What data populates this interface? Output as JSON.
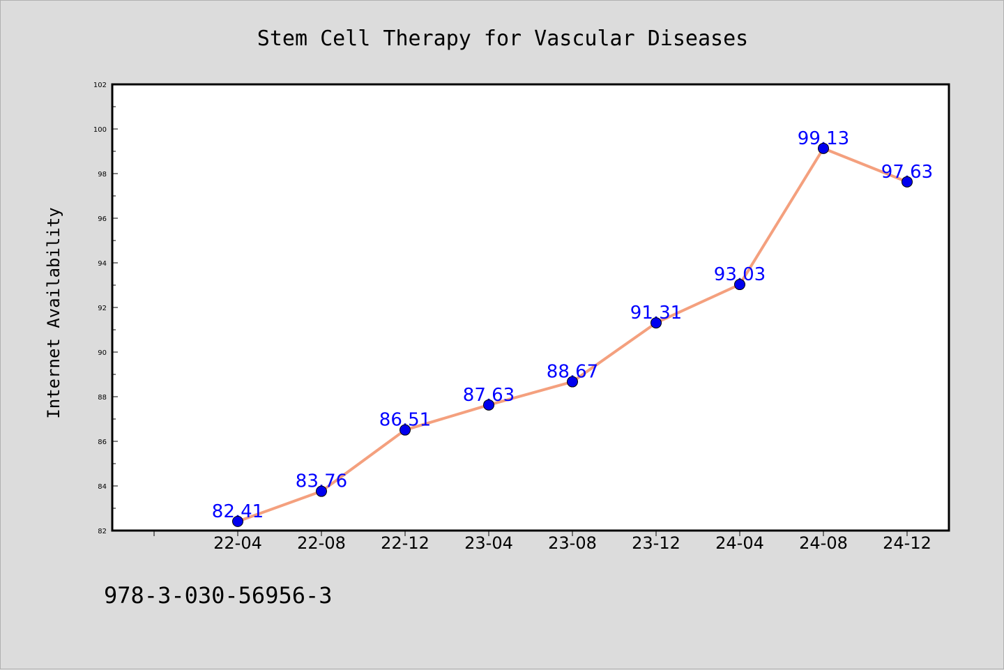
{
  "chart_data": {
    "type": "line",
    "title": "Stem Cell Therapy for Vascular Diseases",
    "xlabel": "",
    "ylabel": "Internet Availability",
    "categories": [
      "22-04",
      "22-08",
      "22-12",
      "23-04",
      "23-08",
      "23-12",
      "24-04",
      "24-08",
      "24-12"
    ],
    "series": [
      {
        "values": [
          82.41,
          83.76,
          86.51,
          87.63,
          88.67,
          91.31,
          93.03,
          99.13,
          97.63
        ],
        "data_labels": [
          "82.41",
          "83.76",
          "86.51",
          "87.63",
          "88.67",
          "91.31",
          "93.03",
          "99.13",
          "97.63"
        ],
        "line_color": "#f4a07e",
        "marker_color": "#0000ee"
      }
    ],
    "ylim": [
      82,
      102
    ],
    "yticks": [
      82,
      84,
      86,
      88,
      90,
      92,
      94,
      96,
      98,
      100,
      102
    ],
    "grid": false,
    "legend": "none",
    "label_color": "#0000ff",
    "background": "#dcdcdc",
    "plot_background": "#ffffff"
  },
  "footer_text": "978-3-030-56956-3"
}
